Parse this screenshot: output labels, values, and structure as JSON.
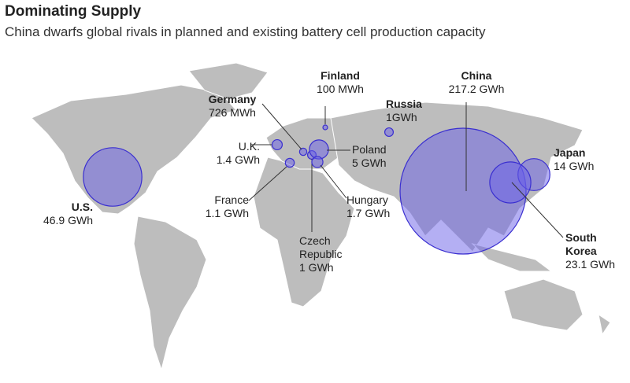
{
  "chart_data": {
    "type": "bubble_map",
    "title": "Dominating Supply",
    "subtitle": "China dwarfs global rivals in planned and existing battery cell production capacity",
    "categories": [
      "Finland",
      "Germany",
      "U.K.",
      "France",
      "Czech Republic",
      "Poland",
      "Hungary",
      "Russia",
      "China",
      "Japan",
      "South Korea",
      "U.S."
    ],
    "values": [
      0.1,
      0.726,
      1.4,
      1.1,
      1,
      5,
      1.7,
      1,
      217.2,
      14,
      23.1,
      46.9
    ],
    "value_labels": [
      "100 MWh",
      "726 MWh",
      "1.4 GWh",
      "1.1 GWh",
      "1 GWh",
      "5 GWh",
      "1.7 GWh",
      "1GWh",
      "217.2 GWh",
      "14 GWh",
      "23.1 GWh",
      "46.9 GWh"
    ],
    "color": "#6a5fe8"
  }
}
